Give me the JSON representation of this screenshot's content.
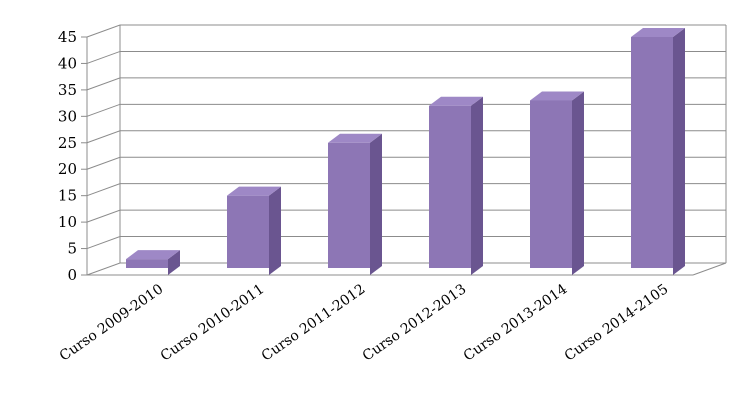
{
  "chart_data": {
    "type": "bar",
    "style": "3d-column",
    "categories": [
      "Curso 2009-2010",
      "Curso 2010-2011",
      "Curso 2011-2012",
      "Curso 2012-2013",
      "Curso 2013-2014",
      "Curso 2014-2105"
    ],
    "values": [
      3,
      15,
      25,
      32,
      33,
      45
    ],
    "ylim": [
      0,
      45
    ],
    "ytick_labels": [
      "0",
      "5",
      "10",
      "15",
      "20",
      "25",
      "30",
      "35",
      "40",
      "45"
    ],
    "grid": true,
    "legend": "none",
    "title": "",
    "xlabel": "",
    "ylabel": ""
  },
  "colors": {
    "bar_front": "#8d76b5",
    "bar_side": "#6a5590",
    "bar_top": "#9e88c6",
    "grid": "#8c8c8c"
  }
}
